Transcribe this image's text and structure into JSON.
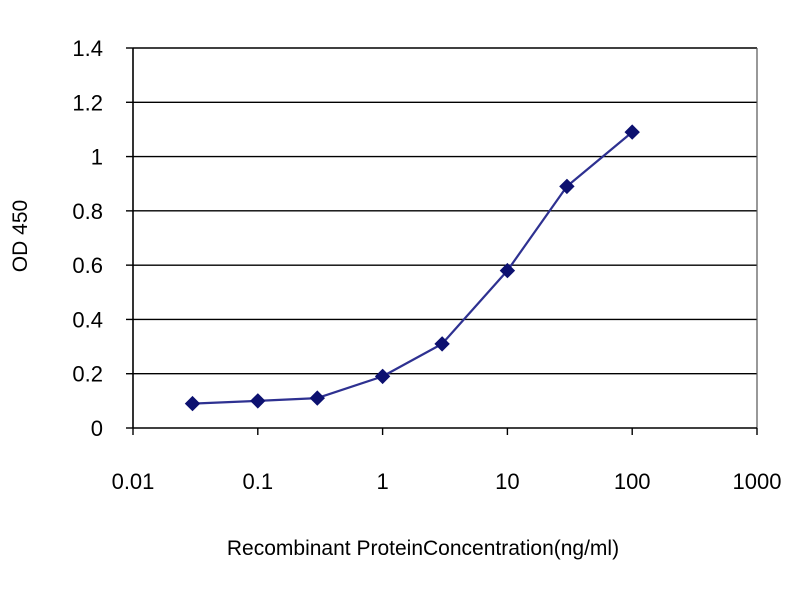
{
  "chart_data": {
    "type": "line",
    "title": "",
    "xlabel": "Recombinant ProteinConcentration(ng/ml)",
    "ylabel": "OD 450",
    "x_scale": "log",
    "xlim": [
      0.01,
      1000
    ],
    "ylim": [
      0,
      1.4
    ],
    "x_ticks": [
      0.01,
      0.1,
      1,
      10,
      100,
      1000
    ],
    "x_tick_labels": [
      "0.01",
      "0.1",
      "1",
      "10",
      "100",
      "1000"
    ],
    "y_ticks": [
      0,
      0.2,
      0.4,
      0.6,
      0.8,
      1,
      1.2,
      1.4
    ],
    "y_tick_labels": [
      "0",
      "0.2",
      "0.4",
      "0.6",
      "0.8",
      "1",
      "1.2",
      "1.4"
    ],
    "grid": "horizontal",
    "legend": "none",
    "series": [
      {
        "x": [
          0.03,
          0.1,
          0.3,
          1,
          3,
          10,
          30,
          100
        ],
        "y": [
          0.09,
          0.1,
          0.11,
          0.19,
          0.31,
          0.58,
          0.89,
          1.09
        ],
        "color": "#2e3191",
        "marker": "diamond"
      }
    ],
    "colors": {
      "gridline": "#000000",
      "line": "#2e3191",
      "marker": "#0d1170"
    }
  }
}
